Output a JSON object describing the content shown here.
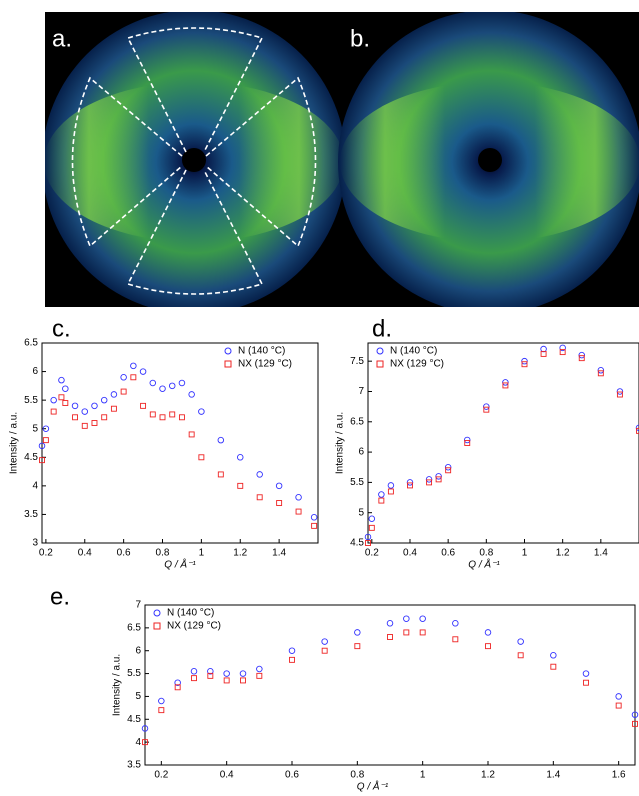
{
  "images": [
    {
      "label": "a."
    },
    {
      "label": "b."
    }
  ],
  "chart_data": [
    {
      "type": "scatter",
      "label": "c.",
      "xlabel": "Q / Å⁻¹",
      "ylabel": "Intensity / a.u.",
      "x": [
        0.18,
        0.2,
        0.24,
        0.28,
        0.3,
        0.35,
        0.4,
        0.45,
        0.5,
        0.55,
        0.6,
        0.65,
        0.7,
        0.75,
        0.8,
        0.85,
        0.9,
        0.95,
        1.0,
        1.1,
        1.2,
        1.3,
        1.4,
        1.5,
        1.58
      ],
      "series": [
        {
          "name": "N (140 °C)",
          "color": "#3333ff",
          "marker": "circle",
          "values": [
            4.7,
            5.0,
            5.5,
            5.85,
            5.7,
            5.4,
            5.3,
            5.4,
            5.5,
            5.6,
            5.9,
            6.1,
            6.0,
            5.8,
            5.7,
            5.75,
            5.8,
            5.6,
            5.3,
            4.8,
            4.5,
            4.2,
            4.0,
            3.8,
            3.45
          ]
        },
        {
          "name": "NX (129 °C)",
          "color": "#ee2222",
          "marker": "square",
          "values": [
            4.45,
            4.8,
            5.3,
            5.55,
            5.45,
            5.2,
            5.05,
            5.1,
            5.2,
            5.35,
            5.65,
            5.9,
            5.4,
            5.25,
            5.2,
            5.25,
            5.2,
            4.9,
            4.5,
            4.2,
            4.0,
            3.8,
            3.7,
            3.55,
            3.3
          ]
        }
      ],
      "xlim": [
        0.18,
        1.6
      ],
      "ylim": [
        3,
        6.5
      ],
      "xticks": [
        0.2,
        0.4,
        0.6,
        0.8,
        1,
        1.2,
        1.4
      ],
      "yticks": [
        3,
        3.5,
        4,
        4.5,
        5,
        5.5,
        6,
        6.5
      ],
      "legend": "upper right"
    },
    {
      "type": "scatter",
      "label": "d.",
      "xlabel": "Q / Å⁻¹",
      "ylabel": "Intensity / a.u.",
      "x": [
        0.18,
        0.2,
        0.25,
        0.3,
        0.4,
        0.5,
        0.55,
        0.6,
        0.7,
        0.8,
        0.9,
        1.0,
        1.1,
        1.2,
        1.3,
        1.4,
        1.5,
        1.6
      ],
      "series": [
        {
          "name": "N (140 °C)",
          "color": "#3333ff",
          "marker": "circle",
          "values": [
            4.6,
            4.9,
            5.3,
            5.45,
            5.5,
            5.55,
            5.6,
            5.75,
            6.2,
            6.75,
            7.15,
            7.5,
            7.7,
            7.72,
            7.6,
            7.35,
            7.0,
            6.4
          ]
        },
        {
          "name": "NX (129 °C)",
          "color": "#ee2222",
          "marker": "square",
          "values": [
            4.5,
            4.75,
            5.2,
            5.35,
            5.45,
            5.5,
            5.55,
            5.7,
            6.15,
            6.7,
            7.1,
            7.45,
            7.62,
            7.65,
            7.55,
            7.3,
            6.95,
            6.35
          ]
        }
      ],
      "xlim": [
        0.18,
        1.6
      ],
      "ylim": [
        4.5,
        7.8
      ],
      "xticks": [
        0.2,
        0.4,
        0.6,
        0.8,
        1,
        1.2,
        1.4
      ],
      "yticks": [
        4.5,
        5,
        5.5,
        6,
        6.5,
        7,
        7.5
      ],
      "legend": "upper left"
    },
    {
      "type": "scatter",
      "label": "e.",
      "xlabel": "Q / Å⁻¹",
      "ylabel": "Intensity / a.u.",
      "x": [
        0.15,
        0.2,
        0.25,
        0.3,
        0.35,
        0.4,
        0.45,
        0.5,
        0.6,
        0.7,
        0.8,
        0.9,
        0.95,
        1.0,
        1.1,
        1.2,
        1.3,
        1.4,
        1.5,
        1.6,
        1.65
      ],
      "series": [
        {
          "name": "N (140 °C)",
          "color": "#3333ff",
          "marker": "circle",
          "values": [
            4.3,
            4.9,
            5.3,
            5.55,
            5.55,
            5.5,
            5.5,
            5.6,
            6.0,
            6.2,
            6.4,
            6.6,
            6.7,
            6.7,
            6.6,
            6.4,
            6.2,
            5.9,
            5.5,
            5.0,
            4.6
          ]
        },
        {
          "name": "NX (129 °C)",
          "color": "#ee2222",
          "marker": "square",
          "values": [
            4.0,
            4.7,
            5.2,
            5.4,
            5.45,
            5.35,
            5.35,
            5.45,
            5.8,
            6.0,
            6.1,
            6.3,
            6.4,
            6.4,
            6.25,
            6.1,
            5.9,
            5.65,
            5.3,
            4.8,
            4.4
          ]
        }
      ],
      "xlim": [
        0.15,
        1.65
      ],
      "ylim": [
        3.5,
        7
      ],
      "xticks": [
        0.2,
        0.4,
        0.6,
        0.8,
        1,
        1.2,
        1.4,
        1.6
      ],
      "yticks": [
        3.5,
        4,
        4.5,
        5,
        5.5,
        6,
        6.5,
        7
      ],
      "legend": "upper left"
    }
  ]
}
